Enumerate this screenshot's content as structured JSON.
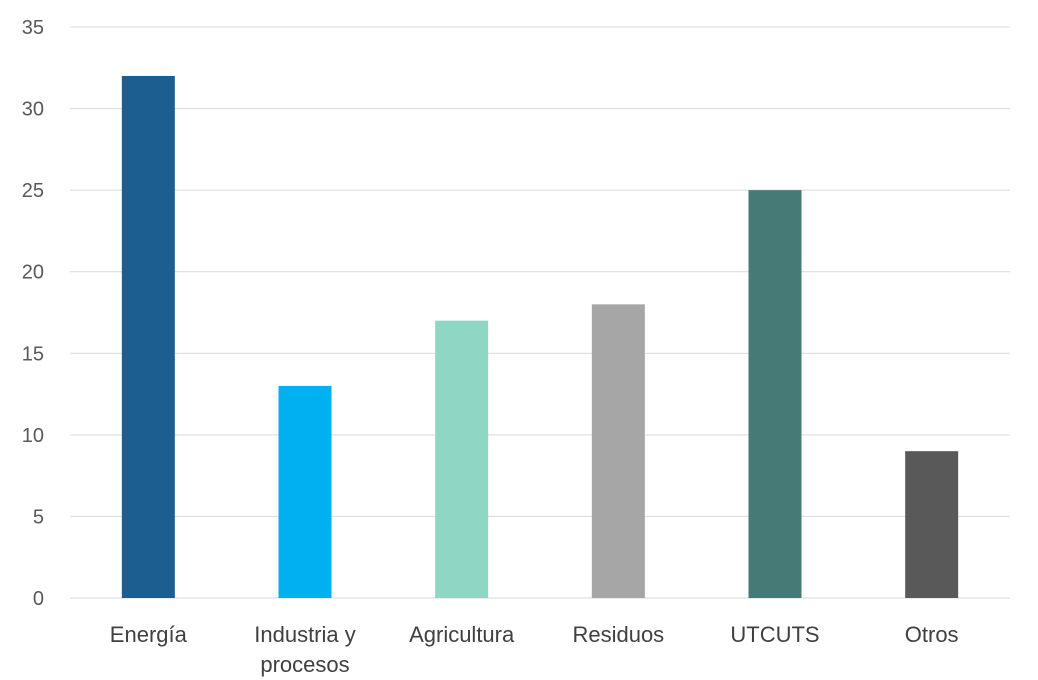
{
  "chart_data": {
    "type": "bar",
    "title": "",
    "xlabel": "",
    "ylabel": "",
    "categories": [
      "Energía",
      "Industria y procesos",
      "Agricultura",
      "Residuos",
      "UTCUTS",
      "Otros"
    ],
    "category_lines": [
      [
        "Energía"
      ],
      [
        "Industria y",
        "procesos"
      ],
      [
        "Agricultura"
      ],
      [
        "Residuos"
      ],
      [
        "UTCUTS"
      ],
      [
        "Otros"
      ]
    ],
    "values": [
      32,
      13,
      17,
      18,
      25,
      9
    ],
    "colors": [
      "#1b5e8f",
      "#00b0f0",
      "#8fd6c4",
      "#a6a6a6",
      "#467a76",
      "#595959"
    ],
    "ylim": [
      0,
      35
    ],
    "yticks": [
      0,
      5,
      10,
      15,
      20,
      25,
      30,
      35
    ],
    "grid": true,
    "legend": "none"
  }
}
